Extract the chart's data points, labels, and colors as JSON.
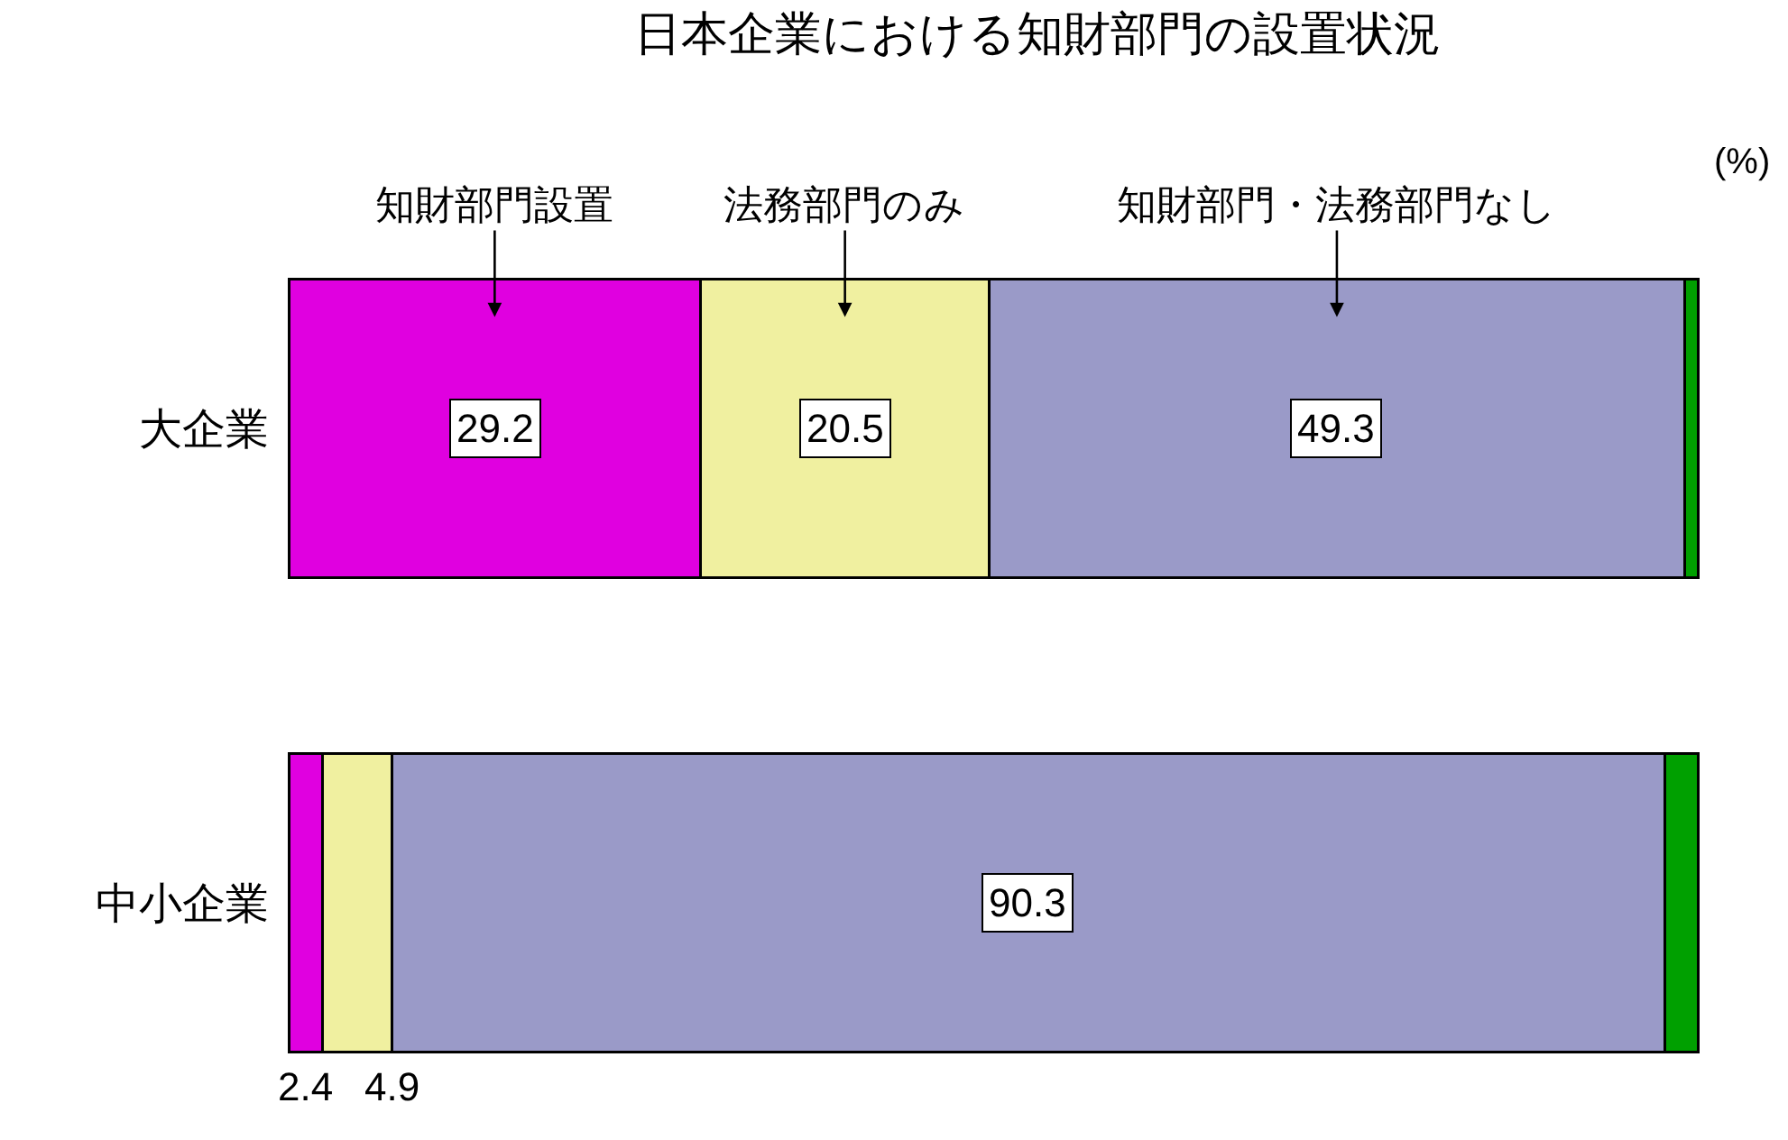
{
  "chart_data": {
    "type": "bar",
    "orientation": "horizontal",
    "stacked": true,
    "title": "日本企業における知財部門の設置状況",
    "categories": [
      "大企業",
      "中小企業"
    ],
    "series": [
      {
        "name": "知財部門設置",
        "color": "#e000e0",
        "values": [
          29.2,
          2.4
        ],
        "value_labels": [
          "29.2",
          "2.4"
        ]
      },
      {
        "name": "法務部門のみ",
        "color": "#f0f0a0",
        "values": [
          20.5,
          4.9
        ],
        "value_labels": [
          "20.5",
          "4.9"
        ]
      },
      {
        "name": "知財部門・法務部門なし",
        "color": "#9a9ac8",
        "values": [
          49.3,
          90.3
        ],
        "value_labels": [
          "49.3",
          "90.3"
        ]
      },
      {
        "color": "#00a000",
        "values": [
          1.0,
          2.4
        ],
        "value_labels": [
          null,
          null
        ]
      }
    ],
    "annotations": [
      "(%)"
    ],
    "legend": false
  }
}
